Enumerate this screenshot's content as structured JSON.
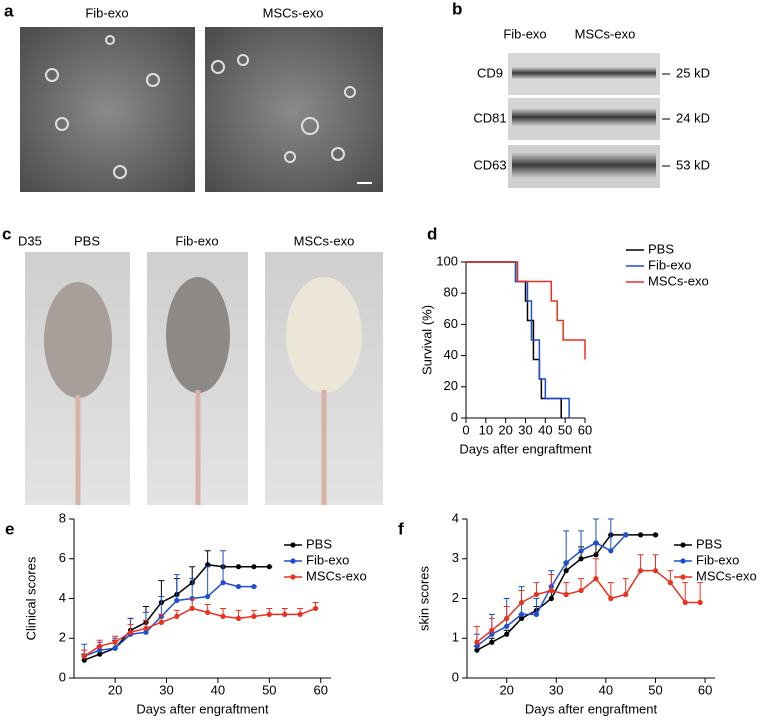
{
  "panels": {
    "a": {
      "label": "a",
      "titles": [
        "Fib-exo",
        "MSCs-exo"
      ]
    },
    "b": {
      "label": "b",
      "columns": [
        "Fib-exo",
        "MSCs-exo"
      ],
      "rows": [
        {
          "name": "CD9",
          "size": "25 kD"
        },
        {
          "name": "CD81",
          "size": "24 kD"
        },
        {
          "name": "CD63",
          "size": "53 kD"
        }
      ]
    },
    "c": {
      "label": "c",
      "day": "D35",
      "groups": [
        "PBS",
        "Fib-exo",
        "MSCs-exo"
      ]
    }
  },
  "chart_data": [
    {
      "type": "step",
      "panel": "d",
      "xlabel": "Days after engraftment",
      "ylabel": "Survival (%)",
      "xlim": [
        0,
        60
      ],
      "xticks": [
        0,
        10,
        20,
        30,
        40,
        50,
        60
      ],
      "ylim": [
        0,
        100
      ],
      "yticks": [
        0,
        20,
        40,
        60,
        80,
        100
      ],
      "series": [
        {
          "name": "PBS",
          "color": "#000000",
          "x": [
            0,
            25,
            30,
            31,
            34,
            37,
            38,
            48
          ],
          "values": [
            100,
            87.5,
            75,
            62.5,
            37.5,
            25,
            12.5,
            0
          ]
        },
        {
          "name": "Fib-exo",
          "color": "#1f4fd1",
          "x": [
            0,
            25,
            31,
            33,
            37,
            40,
            52
          ],
          "values": [
            100,
            87.5,
            75,
            50,
            25,
            12.5,
            0
          ]
        },
        {
          "name": "MSCs-exo",
          "color": "#e8321e",
          "x": [
            0,
            26,
            43,
            46,
            49,
            60
          ],
          "values": [
            100,
            87.5,
            75,
            62.5,
            50,
            37.5
          ]
        }
      ]
    },
    {
      "type": "line",
      "panel": "e",
      "xlabel": "Days after engraftment",
      "ylabel": "Clinical scores",
      "xlim": [
        12,
        62
      ],
      "xticks": [
        20,
        30,
        40,
        50,
        60
      ],
      "ylim": [
        0,
        8
      ],
      "yticks": [
        0,
        2,
        4,
        6,
        8
      ],
      "series": [
        {
          "name": "PBS",
          "color": "#000000",
          "x": [
            14,
            17,
            20,
            23,
            26,
            29,
            32,
            35,
            38,
            41,
            44,
            47,
            50
          ],
          "values": [
            0.9,
            1.2,
            1.5,
            2.4,
            2.8,
            3.8,
            4.2,
            4.8,
            5.7,
            5.6,
            5.6,
            5.6,
            5.6
          ],
          "errors": [
            0.3,
            0.4,
            0.4,
            0.6,
            0.8,
            1.1,
            0.8,
            0.8,
            0.7,
            0,
            0,
            0,
            0
          ]
        },
        {
          "name": "Fib-exo",
          "color": "#1f4fd1",
          "x": [
            14,
            17,
            20,
            23,
            26,
            29,
            32,
            35,
            38,
            41,
            44,
            47
          ],
          "values": [
            1.1,
            1.4,
            1.5,
            2.2,
            2.3,
            3.1,
            3.9,
            4.0,
            4.1,
            4.8,
            4.6,
            4.6
          ],
          "errors": [
            0.6,
            0.4,
            0.5,
            0.8,
            1.0,
            1.0,
            1.3,
            1.0,
            1.5,
            1.6,
            0,
            0
          ]
        },
        {
          "name": "MSCs-exo",
          "color": "#e8321e",
          "x": [
            14,
            17,
            20,
            23,
            26,
            29,
            32,
            35,
            38,
            41,
            44,
            47,
            50,
            53,
            56,
            59
          ],
          "values": [
            1.1,
            1.6,
            1.8,
            2.3,
            2.5,
            2.8,
            3.1,
            3.5,
            3.3,
            3.1,
            3.0,
            3.1,
            3.2,
            3.2,
            3.2,
            3.5
          ],
          "errors": [
            0.3,
            0.3,
            0.3,
            0.4,
            0.4,
            0.4,
            0.3,
            0.5,
            0.4,
            0.4,
            0.4,
            0.3,
            0.3,
            0.3,
            0.3,
            0.3
          ]
        }
      ]
    },
    {
      "type": "line",
      "panel": "f",
      "xlabel": "Days after engraftment",
      "ylabel": "skin scores",
      "xlim": [
        12,
        62
      ],
      "xticks": [
        20,
        30,
        40,
        50,
        60
      ],
      "ylim": [
        0,
        4
      ],
      "yticks": [
        0,
        1,
        2,
        3,
        4
      ],
      "series": [
        {
          "name": "PBS",
          "color": "#000000",
          "x": [
            14,
            17,
            20,
            23,
            26,
            29,
            32,
            35,
            38,
            41,
            44,
            47,
            50
          ],
          "values": [
            0.7,
            0.9,
            1.1,
            1.5,
            1.7,
            2.0,
            2.7,
            3.0,
            3.1,
            3.6,
            3.6,
            3.6,
            3.6
          ],
          "errors": [
            0.1,
            0.1,
            0.1,
            0.1,
            0.1,
            0.2,
            0.2,
            0.3,
            0.3,
            0,
            0,
            0,
            0
          ]
        },
        {
          "name": "Fib-exo",
          "color": "#1f4fd1",
          "x": [
            14,
            17,
            20,
            23,
            26,
            29,
            32,
            35,
            38,
            41,
            44
          ],
          "values": [
            0.8,
            1.1,
            1.3,
            1.6,
            1.6,
            2.3,
            2.9,
            3.2,
            3.4,
            3.2,
            3.6
          ],
          "errors": [
            0.3,
            0.5,
            0.7,
            0.7,
            0.4,
            0.4,
            0.8,
            0.5,
            0.6,
            0.8,
            0
          ]
        },
        {
          "name": "MSCs-exo",
          "color": "#e8321e",
          "x": [
            14,
            17,
            20,
            23,
            26,
            29,
            32,
            35,
            38,
            41,
            44,
            47,
            50,
            53,
            56,
            59
          ],
          "values": [
            0.9,
            1.2,
            1.5,
            1.9,
            2.1,
            2.2,
            2.1,
            2.2,
            2.5,
            2.0,
            2.1,
            2.7,
            2.7,
            2.4,
            1.9,
            1.9
          ],
          "errors": [
            0.4,
            0.3,
            0.3,
            0.3,
            0.3,
            0.4,
            0.3,
            0.3,
            0.5,
            0.4,
            0.4,
            0.4,
            0.4,
            0.3,
            0.5,
            0.5
          ]
        }
      ]
    }
  ]
}
